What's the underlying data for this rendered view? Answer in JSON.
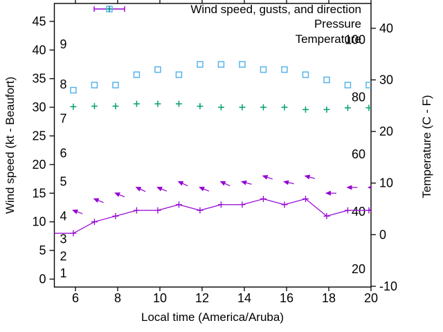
{
  "chart_data": {
    "type": "line",
    "xlabel": "Local time (America/Aruba)",
    "ylabel_left": "Wind speed (kt - Beaufort)",
    "ylabel_right": "Temperature (C - F)",
    "x_range": [
      5,
      20
    ],
    "x_ticks": [
      "6",
      "8",
      "10",
      "12",
      "14",
      "16",
      "18",
      "20"
    ],
    "x_tick_values": [
      6,
      8,
      10,
      12,
      14,
      16,
      18,
      20
    ],
    "left_axis": {
      "tick_labels": [
        "0",
        "5",
        "10",
        "15",
        "20",
        "25",
        "30",
        "35",
        "40",
        "45"
      ],
      "tick_values": [
        0,
        5,
        10,
        15,
        20,
        25,
        30,
        35,
        40,
        45
      ]
    },
    "left_inner_scale": {
      "name": "Beaufort",
      "labels": [
        "1",
        "2",
        "3",
        "4",
        "5",
        "6",
        "7",
        "8",
        "9"
      ],
      "kt_positions": [
        1,
        4,
        7,
        11,
        17,
        22,
        28,
        34,
        41
      ]
    },
    "right_axis": {
      "tick_labels": [
        "40",
        "30",
        "20",
        "10",
        "0",
        "-10"
      ],
      "tick_values": [
        40,
        30,
        20,
        10,
        0,
        -10
      ]
    },
    "right_inner_scale": {
      "name": "Fahrenheit",
      "labels": [
        "100",
        "80",
        "60",
        "40",
        "20"
      ],
      "c_positions": [
        37.78,
        26.67,
        15.56,
        4.44,
        -6.67
      ]
    },
    "hours": [
      5.9,
      6.9,
      7.9,
      8.9,
      9.9,
      10.9,
      11.9,
      12.9,
      13.9,
      14.9,
      15.9,
      16.9,
      17.9,
      18.9,
      19.9
    ],
    "series": [
      {
        "name": "Wind speed",
        "marker": "plus-line",
        "color": "#9400d3",
        "axis": "kt",
        "values": [
          8,
          10,
          11,
          12,
          12,
          13,
          12,
          13,
          13,
          14,
          13,
          14,
          11,
          12,
          12
        ],
        "edge_left": 8,
        "edge_right": 12.2
      },
      {
        "name": "Wind gusts",
        "marker": "arrow",
        "color": "#9400d3",
        "axis": "kt",
        "values": [
          12,
          14,
          15,
          16,
          16,
          17,
          16,
          17,
          17,
          18,
          17,
          18,
          15,
          16,
          16
        ],
        "tilt_deg": [
          20,
          22,
          22,
          25,
          22,
          25,
          22,
          25,
          15,
          18,
          12,
          15,
          0,
          0,
          0
        ]
      },
      {
        "name": "Pressure",
        "marker": "plus",
        "color": "#009e73",
        "axis": "kt",
        "values": [
          30.1,
          30.2,
          30.2,
          30.6,
          30.6,
          30.6,
          30.2,
          30.0,
          30.0,
          30.0,
          30.0,
          29.6,
          29.6,
          29.9,
          29.9
        ]
      },
      {
        "name": "Temperature",
        "marker": "square",
        "color": "#56b4e9",
        "axis": "c",
        "values": [
          28,
          29,
          29,
          31,
          32,
          31,
          33,
          33,
          33,
          32,
          32,
          31,
          30,
          29,
          29
        ]
      }
    ],
    "legend": [
      {
        "label": "Wind speed, gusts, and direction",
        "sample": "errorbar",
        "color": "#9400d3"
      },
      {
        "label": "Pressure",
        "sample": "plus",
        "color": "#009e73"
      },
      {
        "label": "Temperature",
        "sample": "square",
        "color": "#56b4e9"
      }
    ],
    "colors": {
      "wind": "#9400d3",
      "pressure": "#009e73",
      "temperature": "#56b4e9",
      "axis": "#000000"
    }
  }
}
